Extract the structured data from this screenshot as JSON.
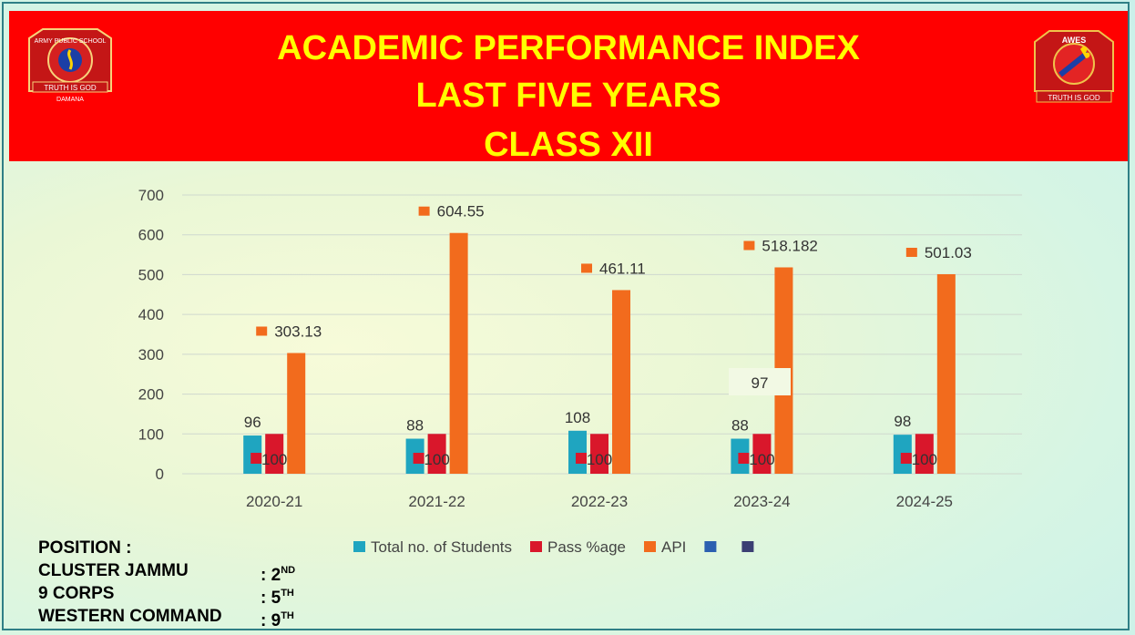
{
  "header": {
    "lines": [
      "ACADEMIC PERFORMANCE INDEX",
      "LAST FIVE YEARS",
      "CLASS XII"
    ],
    "logo_left": {
      "icon": "army-public-school-logo",
      "text_top": "ARMY PUBLIC SCHOOL",
      "motto": "TRUTH IS GOD",
      "place": "DAMANA"
    },
    "logo_right": {
      "icon": "awes-logo",
      "text_top": "AWES",
      "motto": "TRUTH IS GOD"
    }
  },
  "chart_data": {
    "type": "bar",
    "categories": [
      "2020-21",
      "2021-22",
      "2022-23",
      "2023-24",
      "2024-25"
    ],
    "series": [
      {
        "name": "Total no. of Students",
        "color": "#1fa5c0",
        "values": [
          96,
          88,
          108,
          88,
          98
        ],
        "labels": [
          "96",
          "88",
          "108",
          "88",
          "98"
        ]
      },
      {
        "name": "Pass %age",
        "color": "#d9172b",
        "values": [
          100,
          100,
          100,
          100,
          100
        ],
        "labels": [
          "100",
          "100",
          "100",
          "100",
          "100"
        ]
      },
      {
        "name": "API",
        "color": "#f26b1d",
        "values": [
          303.13,
          604.55,
          461.11,
          518.182,
          501.03
        ],
        "labels": [
          "303.13",
          "604.55",
          "461.11",
          "518.182",
          "501.03"
        ]
      }
    ],
    "extra_legend": [
      {
        "name": "",
        "color": "#2b5fb0"
      },
      {
        "name": "",
        "color": "#3b3f73"
      }
    ],
    "floating_annotation": "97",
    "yticks": [
      "0",
      "100",
      "200",
      "300",
      "400",
      "500",
      "600",
      "700"
    ],
    "ylim": [
      0,
      700
    ],
    "grid": true,
    "legend_position": "bottom"
  },
  "position": {
    "heading": "POSITION :",
    "rows": [
      {
        "name": "CLUSTER  JAMMU",
        "value": ": 2",
        "suffix": "ND"
      },
      {
        "name": "9 CORPS",
        "value": ": 5",
        "suffix": "TH"
      },
      {
        "name": "WESTERN COMMAND",
        "value": ":  9",
        "suffix": "TH"
      }
    ]
  }
}
